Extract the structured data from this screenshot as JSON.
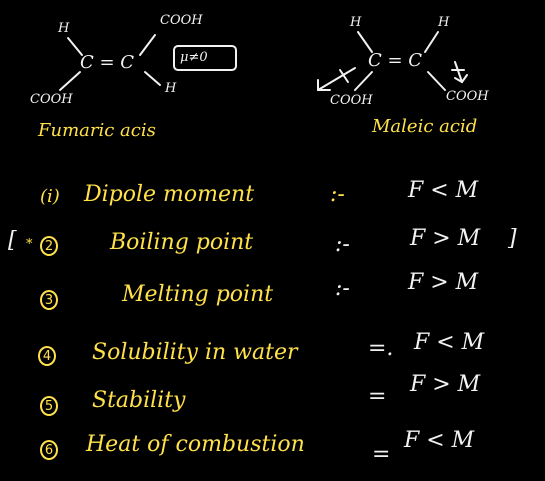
{
  "fumaric": {
    "h_top": "H",
    "cooh_top": "COOH",
    "c_eq_c": "C = C",
    "cooh_bottom": "COOH",
    "h_bottom": "H",
    "mu_label": "μ≠0",
    "name": "Fumaric acis"
  },
  "maleic": {
    "h_left": "H",
    "h_right": "H",
    "c_eq_c": "C = C",
    "cooh_left": "COOH",
    "cooh_right": "COOH",
    "name": "Maleic acid"
  },
  "properties": [
    {
      "marker": "(i)",
      "label": "Dipole moment",
      "sep": ":-",
      "rel": "F < M"
    },
    {
      "marker": "2",
      "label": "Boiling point",
      "sep": ":-",
      "rel": "F > M"
    },
    {
      "marker": "3",
      "label": "Melting point",
      "sep": ":-",
      "rel": "F > M"
    },
    {
      "marker": "4",
      "label": "Solubility in water",
      "sep": "=.",
      "rel": "F < M"
    },
    {
      "marker": "5",
      "label": "Stability",
      "sep": "=",
      "rel": "F > M"
    },
    {
      "marker": "6",
      "label": "Heat of combustion",
      "sep": "=",
      "rel": "F < M"
    }
  ],
  "bracket_open": "[",
  "bracket_close": "]",
  "star": "*"
}
